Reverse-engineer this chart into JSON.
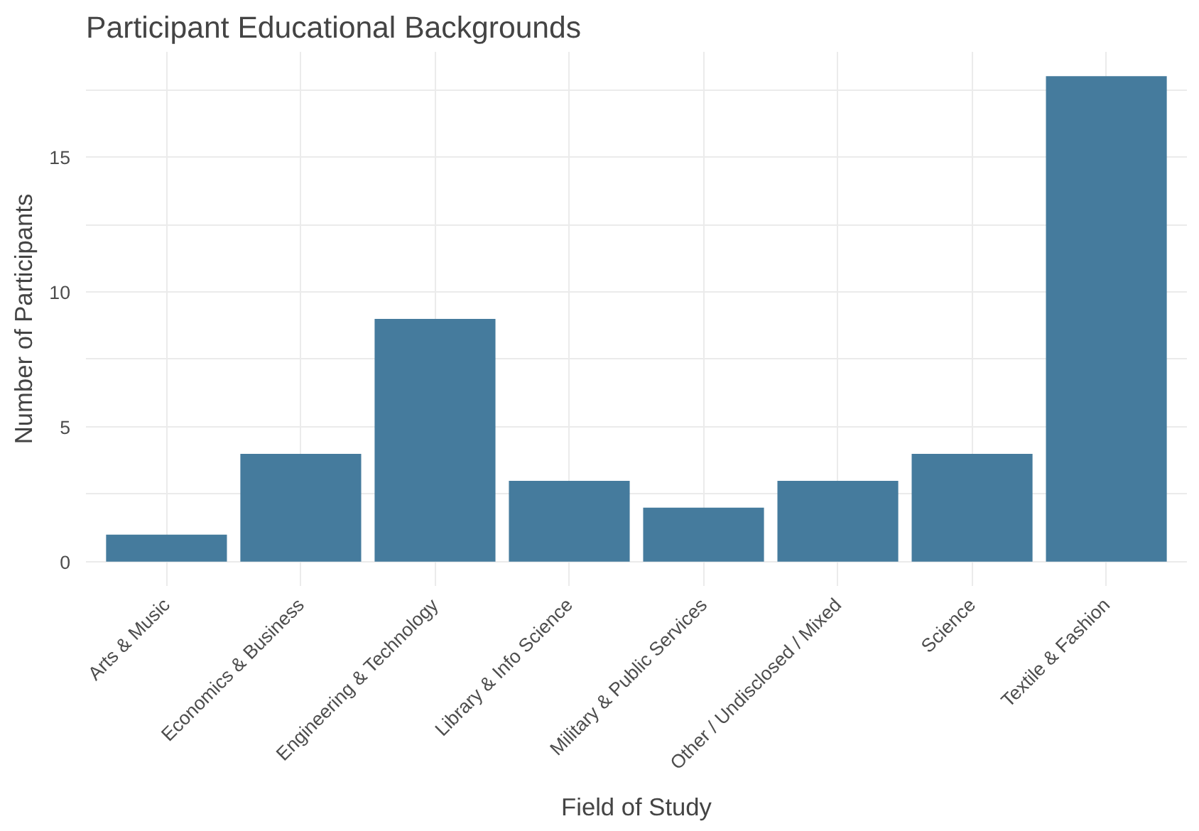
{
  "chart_data": {
    "type": "bar",
    "title": "Participant Educational Backgrounds",
    "xlabel": "Field of Study",
    "ylabel": "Number of Participants",
    "categories": [
      "Arts & Music",
      "Economics & Business",
      "Engineering & Technology",
      "Library & Info Science",
      "Military & Public Services",
      "Other / Undisclosed / Mixed",
      "Science",
      "Textile & Fashion"
    ],
    "values": [
      1,
      4,
      9,
      3,
      2,
      3,
      4,
      18
    ],
    "color": "#457b9d",
    "ylim": [
      -0.9,
      18.9
    ],
    "yticks": [
      0,
      {
        "value": 2.5,
        "label": null
      },
      5,
      {
        "value": 7.5,
        "label": null
      },
      10,
      {
        "value": 12.5,
        "label": null
      },
      15,
      {
        "value": 17.5,
        "label": null
      }
    ],
    "grid": true
  }
}
